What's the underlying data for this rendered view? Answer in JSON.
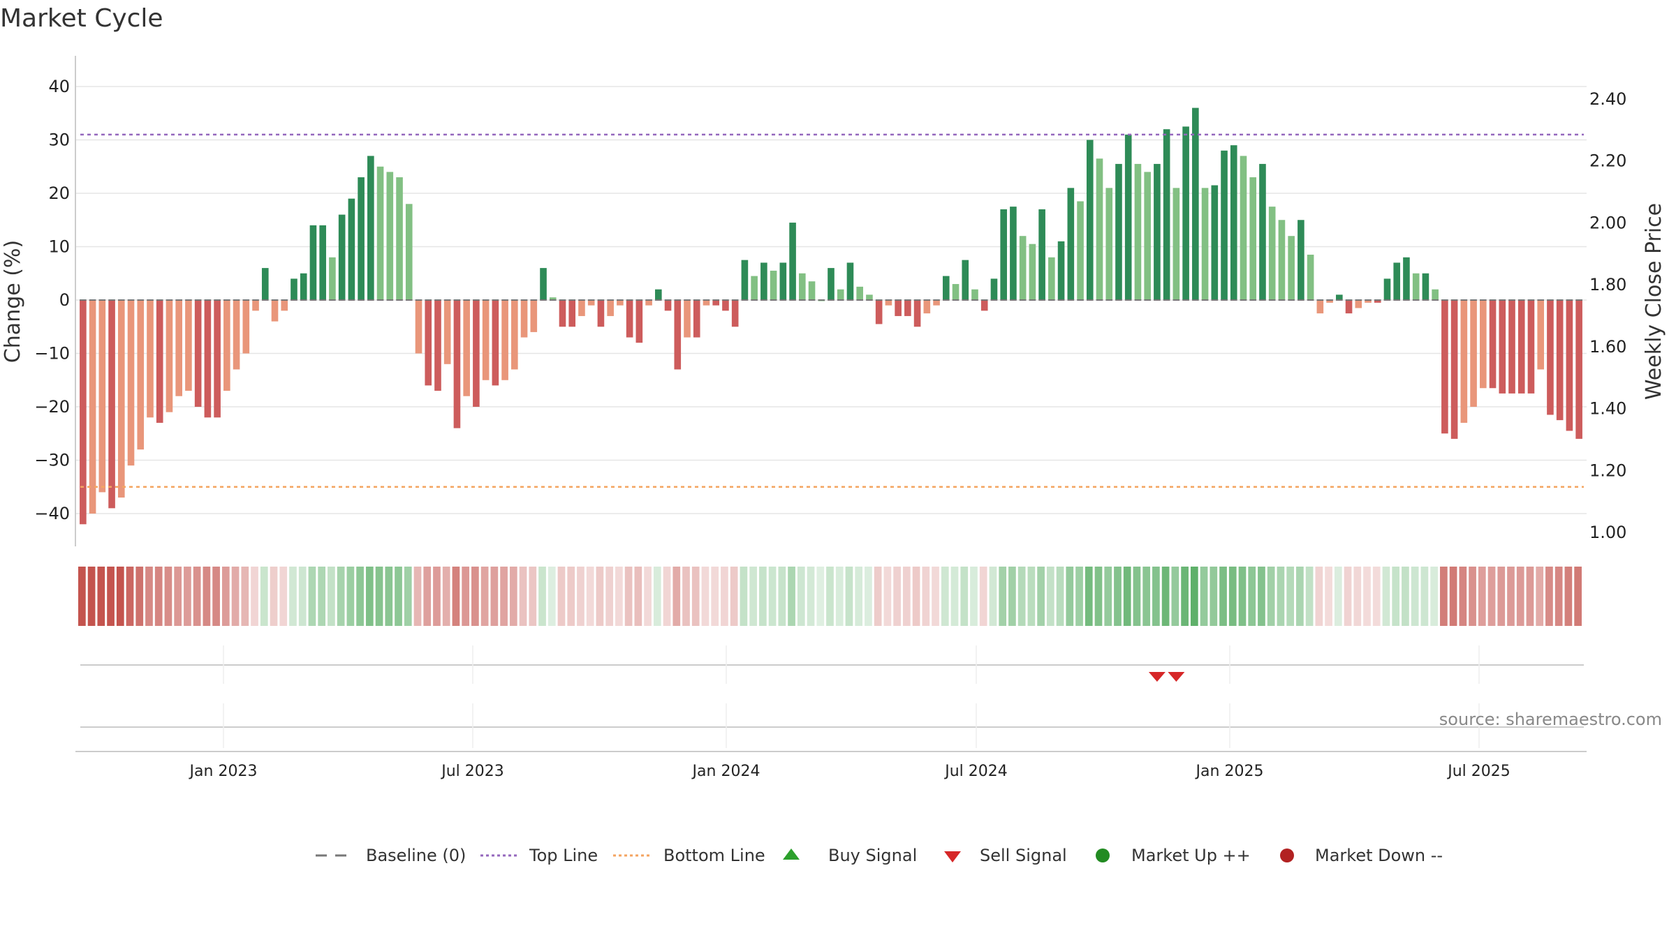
{
  "chart_data": {
    "type": "bar",
    "title": "Market Cycle",
    "ylabel_left": "Change (%)",
    "ylabel_right": "Weekly Close Price",
    "left_axis": {
      "ylim": [
        -46,
        46
      ],
      "ticks": [
        40,
        30,
        20,
        10,
        0,
        -10,
        -20,
        -30,
        -40
      ],
      "tick_labels": [
        "40",
        "30",
        "20",
        "10",
        "0",
        "−10",
        "−20",
        "−30",
        "−40"
      ]
    },
    "right_axis": {
      "ylim": [
        0.98,
        2.45
      ],
      "ticks": [
        2.4,
        2.2,
        2.0,
        1.8,
        1.6,
        1.4,
        1.2,
        1.0
      ],
      "tick_labels": [
        "2.40",
        "2.20",
        "2.00",
        "1.80",
        "1.60",
        "1.40",
        "1.20",
        "1.00"
      ]
    },
    "x_axis": {
      "labels": [
        "Jan 2023",
        "Jul 2023",
        "Jan 2024",
        "Jul 2024",
        "Jan 2025",
        "Jul 2025"
      ]
    },
    "reference_lines": {
      "top_line": 31,
      "bottom_line": -35,
      "baseline": 0
    },
    "values": [
      -42,
      -40,
      -36,
      -39,
      -37,
      -31,
      -28,
      -22,
      -23,
      -21,
      -18,
      -17,
      -20,
      -22,
      -22,
      -17,
      -13,
      -10,
      -2,
      6,
      -4,
      -2,
      4,
      5,
      14,
      14,
      8,
      16,
      19,
      23,
      27,
      25,
      24,
      23,
      18,
      -10,
      -16,
      -17,
      -12,
      -24,
      -18,
      -20,
      -15,
      -16,
      -15,
      -13,
      -7,
      -6,
      6,
      0.5,
      -5,
      -5,
      -3,
      -1,
      -5,
      -3,
      -1,
      -7,
      -8,
      -1,
      2,
      -2,
      -13,
      -7,
      -7,
      -1,
      -1,
      -2,
      -5,
      7.5,
      4.5,
      7,
      5.5,
      7,
      14.5,
      5,
      3.5,
      0,
      6,
      2,
      7,
      2.5,
      1,
      -4.5,
      -1,
      -3,
      -3,
      -5,
      -2.5,
      -1,
      4.5,
      3,
      7.5,
      2,
      -2,
      4,
      17,
      17.5,
      12,
      10.5,
      17,
      8,
      11,
      21,
      18.5,
      30,
      26.5,
      21,
      25.5,
      31,
      25.5,
      24,
      25.5,
      32,
      21,
      32.5,
      36,
      21,
      21.5,
      28,
      29,
      27,
      23,
      25.5,
      17.5,
      15,
      12,
      15,
      8.5,
      -2.5,
      -0.5,
      1,
      -2.5,
      -1.5,
      -0.5,
      -0.5,
      4,
      7,
      8,
      5,
      5,
      2,
      -25,
      -26,
      -23,
      -20,
      -16.5,
      -16.5,
      -17.5,
      -17.5,
      -17.5,
      -17.5,
      -13,
      -21.5,
      -22.5,
      -24.5,
      -26
    ],
    "heat_strip": [
      -42,
      -40,
      -36,
      -39,
      -37,
      -31,
      -28,
      -22,
      -23,
      -21,
      -18,
      -17,
      -20,
      -22,
      -22,
      -17,
      -13,
      -10,
      -2,
      6,
      -4,
      -2,
      4,
      5,
      14,
      14,
      8,
      16,
      19,
      23,
      27,
      25,
      24,
      23,
      18,
      -10,
      -16,
      -17,
      -12,
      -24,
      -18,
      -20,
      -15,
      -16,
      -15,
      -13,
      -7,
      -6,
      6,
      0.5,
      -5,
      -5,
      -3,
      -1,
      -5,
      -3,
      -1,
      -7,
      -8,
      -1,
      2,
      -2,
      -13,
      -7,
      -7,
      -1,
      -1,
      -2,
      -5,
      7.5,
      4.5,
      7,
      5.5,
      7,
      14.5,
      5,
      3.5,
      0,
      6,
      2,
      7,
      2.5,
      1,
      -4.5,
      -1,
      -3,
      -3,
      -5,
      -2.5,
      -1,
      4.5,
      3,
      7.5,
      2,
      -2,
      4,
      17,
      17.5,
      12,
      10.5,
      17,
      8,
      11,
      21,
      18.5,
      30,
      26.5,
      21,
      25.5,
      31,
      25.5,
      24,
      25.5,
      32,
      21,
      32.5,
      36,
      21,
      21.5,
      28,
      29,
      27,
      23,
      25.5,
      17.5,
      15,
      12,
      15,
      8.5,
      -2.5,
      -0.5,
      1,
      -2.5,
      -1.5,
      -0.5,
      -0.5,
      4,
      7,
      8,
      5,
      5,
      2,
      -25,
      -26,
      -23,
      -20,
      -16.5,
      -16.5,
      -17.5,
      -17.5,
      -17.5,
      -17.5,
      -13,
      -21.5,
      -22.5,
      -24.5,
      -26
    ],
    "sell_signals": [
      112,
      114
    ],
    "buy_signals": [],
    "grid": true,
    "legend_position": "bottom",
    "colors": {
      "pos_dark": "#2e8b57",
      "pos_light": "#82c083",
      "neg_dark": "#cd5c5c",
      "neg_light": "#e9967a",
      "top_line": "#9467bd",
      "bottom_line": "#f4a460",
      "sell": "#d62728",
      "buy": "#2ca02c",
      "market_up": "#228b22",
      "market_down": "#b22222",
      "baseline": "#777777"
    }
  },
  "legend": [
    {
      "label": "Baseline (0)",
      "icon": "dash-line-icon"
    },
    {
      "label": "Top Line",
      "icon": "dotted-line-icon"
    },
    {
      "label": "Bottom Line",
      "icon": "dotted-line-icon"
    },
    {
      "label": "Buy Signal",
      "icon": "triangle-up-icon"
    },
    {
      "label": "Sell Signal",
      "icon": "triangle-down-icon"
    },
    {
      "label": "Market Up ++",
      "icon": "circle-icon"
    },
    {
      "label": "Market Down --",
      "icon": "circle-icon"
    }
  ],
  "source": "source: sharemaestro.com"
}
